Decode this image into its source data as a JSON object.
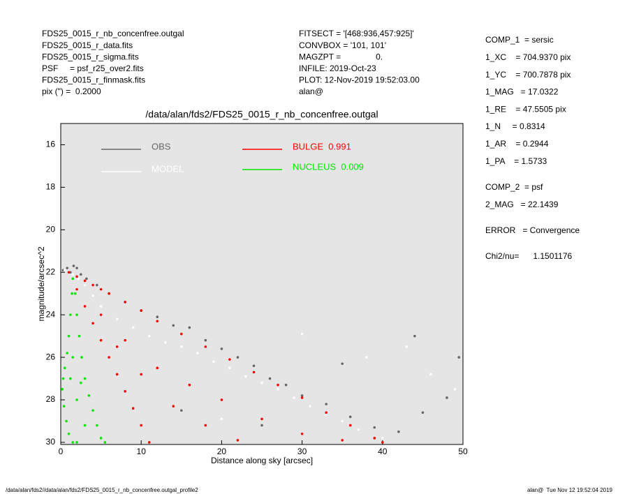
{
  "header": {
    "left": [
      "FDS25_0015_r_nb_concenfree.outgal",
      "FDS25_0015_r_data.fits",
      "FDS25_0015_r_sigma.fits",
      "PSF     = psf_r25_over2.fits",
      "FDS25_0015_r_finmask.fits",
      "pix (\") =  0.2000"
    ],
    "center": [
      "FITSECT = '[468:936,457:925]'",
      "CONVBOX = '101, 101'",
      "MAGZPT =               0.",
      "INFILE: 2019-Oct-23",
      "PLOT: 12-Nov-2019 19:52:03.00",
      "alan@"
    ]
  },
  "fit_summary": [
    [
      "COMP_1  = sersic",
      "1_XC    = 704.9370 pix",
      "1_YC    = 700.7878 pix",
      "1_MAG   = 17.0322",
      "1_RE    = 47.5505 pix",
      "1_N     = 0.8314",
      "1_AR    = 0.2944",
      "1_PA    = 1.5733"
    ],
    [
      "COMP_2  = psf",
      "2_MAG   = 22.1439"
    ],
    [
      "ERROR   = Convergence"
    ],
    [
      "Chi2/nu=      1.1501176"
    ]
  ],
  "footer": {
    "left": "/data/alan/fds2//data/alan/fds2/FDS25_0015_r_nb_concenfree.outgal_profile2",
    "right": "alan@  Tue Nov 12 19:52:04 2019"
  },
  "chart_data": {
    "type": "scatter",
    "title": "/data/alan/fds2/FDS25_0015_r_nb_concenfree.outgal",
    "xlabel": "Distance along sky [arcsec]",
    "ylabel": "magnitude/arcsec^2",
    "xlim": [
      0,
      50
    ],
    "ylim": [
      15,
      30.1
    ],
    "y_inverted": true,
    "xticks": [
      0,
      10,
      20,
      30,
      40,
      50
    ],
    "yticks": [
      16,
      18,
      20,
      22,
      24,
      26,
      28,
      30
    ],
    "series": [
      {
        "name": "OBS",
        "color": "#666666",
        "x": [
          0.3,
          0.8,
          1.2,
          1.6,
          2.0,
          2.5,
          3.2,
          4.5,
          6,
          8,
          10,
          12,
          14,
          16,
          18,
          20,
          22,
          24,
          26,
          28,
          30,
          33,
          36,
          39,
          42,
          45,
          48,
          49.5,
          15,
          25,
          35,
          44
        ],
        "values": [
          21.9,
          21.8,
          22.0,
          21.7,
          21.8,
          22.1,
          22.3,
          22.6,
          23.0,
          23.4,
          23.8,
          24.1,
          24.5,
          24.6,
          25.2,
          25.6,
          26.0,
          26.4,
          27.0,
          27.3,
          27.8,
          28.2,
          28.8,
          29.3,
          29.5,
          28.6,
          27.9,
          26.0,
          28.5,
          29.2,
          26.3,
          25.0
        ]
      },
      {
        "name": "MODEL",
        "color": "#ffffff",
        "x": [
          0.5,
          1.0,
          1.5,
          2.2,
          3,
          4,
          5,
          7,
          9,
          11,
          13,
          15,
          17,
          19,
          21,
          23,
          25,
          27,
          29,
          31,
          33,
          35,
          37,
          40,
          43,
          46,
          49,
          20,
          30,
          38
        ],
        "values": [
          21.9,
          22.0,
          22.1,
          22.3,
          22.6,
          23.1,
          23.6,
          24.2,
          24.6,
          25.0,
          25.3,
          25.5,
          25.8,
          26.2,
          26.5,
          26.9,
          27.2,
          27.5,
          27.9,
          28.3,
          28.7,
          29.0,
          29.4,
          29.8,
          25.5,
          26.8,
          27.5,
          28.9,
          24.9,
          26.0
        ]
      },
      {
        "name": "BULGE  0.991",
        "color": "#ff0000",
        "x": [
          1,
          2,
          3,
          4,
          5,
          6,
          8,
          10,
          12,
          15,
          18,
          21,
          24,
          27,
          30,
          33,
          36,
          39,
          40,
          2,
          3,
          4,
          5,
          6,
          7,
          8,
          9,
          10,
          11,
          5,
          8,
          12,
          16,
          20,
          25,
          30,
          35,
          7,
          10,
          14,
          18,
          22
        ],
        "values": [
          22,
          22.2,
          22.4,
          22.6,
          22.8,
          23.0,
          23.4,
          23.8,
          24.3,
          24.9,
          25.5,
          26.1,
          26.7,
          27.3,
          27.9,
          28.6,
          29.2,
          29.8,
          30.0,
          22.8,
          23.6,
          24.4,
          25.2,
          26.0,
          26.8,
          27.6,
          28.4,
          29.2,
          30.0,
          24.0,
          25.2,
          26.5,
          27.3,
          28.0,
          28.9,
          29.6,
          29.9,
          25.5,
          26.8,
          28.3,
          29.2,
          29.9
        ]
      },
      {
        "name": "NUCLEUS  0.009",
        "color": "#00e600",
        "x": [
          1.5,
          1.4,
          1.2,
          1.0,
          0.8,
          0.5,
          0.3,
          0.2,
          0.4,
          0.7,
          1.0,
          1.5,
          2.0,
          1.8,
          2.0,
          2.3,
          2.6,
          3.0,
          3.5,
          4.0,
          4.5,
          5.0,
          5.5,
          1.2,
          2.0,
          3.0,
          2.5,
          1.5
        ],
        "values": [
          22.3,
          23,
          24,
          25,
          25.8,
          26.5,
          27,
          27.5,
          28.3,
          29,
          29.6,
          30,
          30,
          23,
          24,
          25,
          26,
          27,
          27.8,
          28.5,
          29.2,
          29.8,
          30,
          27,
          28,
          29.2,
          27.2,
          26
        ]
      }
    ]
  }
}
